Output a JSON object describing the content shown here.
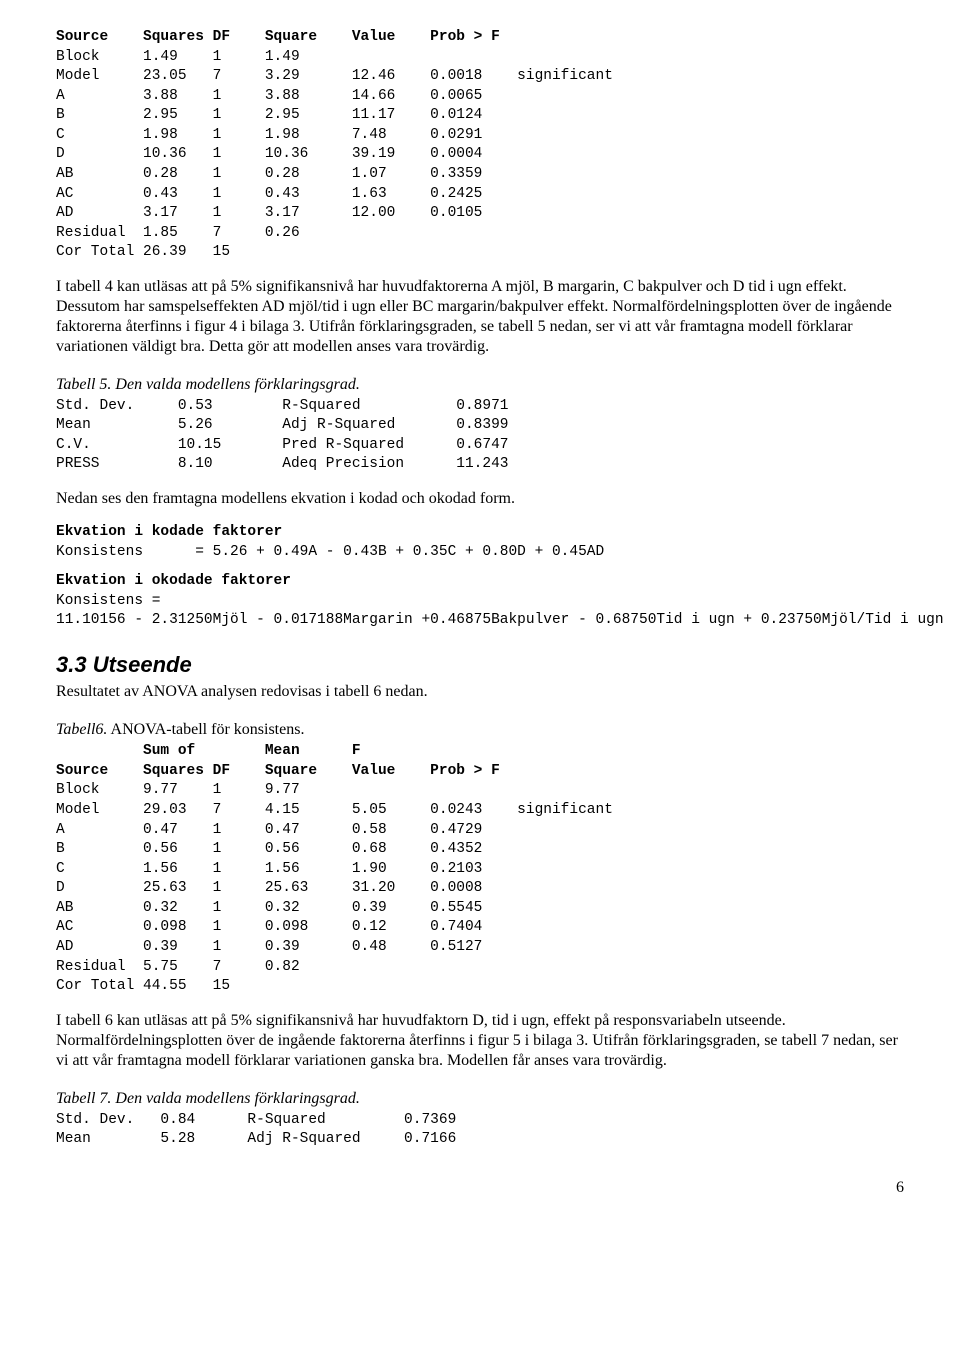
{
  "anova1": {
    "header": [
      "Source",
      "Squares",
      "DF",
      "Square",
      "Value",
      "Prob > F",
      ""
    ],
    "rows": [
      [
        "Block",
        "1.49",
        "1",
        "1.49",
        "",
        "",
        ""
      ],
      [
        "Model",
        "23.05",
        "7",
        "3.29",
        "12.46",
        "0.0018",
        "significant"
      ],
      [
        "A",
        "3.88",
        "1",
        "3.88",
        "14.66",
        "0.0065",
        ""
      ],
      [
        "B",
        "2.95",
        "1",
        "2.95",
        "11.17",
        "0.0124",
        ""
      ],
      [
        "C",
        "1.98",
        "1",
        "1.98",
        "7.48",
        "0.0291",
        ""
      ],
      [
        "D",
        "10.36",
        "1",
        "10.36",
        "39.19",
        "0.0004",
        ""
      ],
      [
        "AB",
        "0.28",
        "1",
        "0.28",
        "1.07",
        "0.3359",
        ""
      ],
      [
        "AC",
        "0.43",
        "1",
        "0.43",
        "1.63",
        "0.2425",
        ""
      ],
      [
        "AD",
        "3.17",
        "1",
        "3.17",
        "12.00",
        "0.0105",
        ""
      ],
      [
        "Residual",
        "1.85",
        "7",
        "0.26",
        "",
        "",
        ""
      ],
      [
        "Cor Total",
        "26.39",
        "15",
        "",
        "",
        "",
        ""
      ]
    ]
  },
  "para1": "I tabell 4 kan utläsas att på 5% signifikansnivå har huvudfaktorerna A mjöl, B margarin, C bakpulver och D tid i ugn effekt. Dessutom har samspelseffekten AD mjöl/tid i ugn eller BC margarin/bakpulver effekt. Normalfördelningsplotten över de ingående faktorerna återfinns i figur 4 i bilaga 3. Utifrån förklaringsgraden, se tabell 5 nedan, ser vi att vår framtagna modell förklarar variationen väldigt bra. Detta gör att modellen anses vara trovärdig.",
  "caption5": "Tabell 5. Den valda modellens förklaringsgrad.",
  "fit5": {
    "rows": [
      [
        "Std. Dev.",
        "0.53",
        "R-Squared",
        "0.8971"
      ],
      [
        "Mean",
        "5.26",
        "Adj R-Squared",
        "0.8399"
      ],
      [
        "C.V.",
        "10.15",
        "Pred R-Squared",
        "0.6747"
      ],
      [
        "PRESS",
        "8.10",
        "Adeq Precision",
        "11.243"
      ]
    ]
  },
  "para2": "Nedan ses den framtagna modellens ekvation i kodad och okodad form.",
  "eqCodedHeader": "Ekvation i kodade faktorer",
  "eqCodedLabel": "Konsistens",
  "eqCodedExpr": "= 5.26 + 0.49A - 0.43B + 0.35C + 0.80D + 0.45AD",
  "eqUncodedHeader": "Ekvation i okodade faktorer",
  "eqUncodedLabel": "Konsistens =",
  "eqUncodedExpr": "11.10156 - 2.31250Mjöl - 0.017188Margarin +0.46875Bakpulver - 0.68750Tid i ugn + 0.23750Mjöl/Tid i ugn",
  "section33": "3.3 Utseende",
  "section33intro": "Resultatet av ANOVA analysen redovisas i tabell 6 nedan.",
  "caption6a": "Tabell6.",
  "caption6b": " ANOVA-tabell för konsistens.",
  "anova6": {
    "header1": [
      "",
      "Sum of",
      "",
      "Mean",
      "F",
      "",
      ""
    ],
    "header2": [
      "Source",
      "Squares",
      "DF",
      "Square",
      "Value",
      "Prob > F",
      ""
    ],
    "rows": [
      [
        "Block",
        "9.77",
        "1",
        "9.77",
        "",
        "",
        ""
      ],
      [
        "Model",
        "29.03",
        "7",
        "4.15",
        "5.05",
        "0.0243",
        "significant"
      ],
      [
        "A",
        "0.47",
        "1",
        "0.47",
        "0.58",
        "0.4729",
        ""
      ],
      [
        "B",
        "0.56",
        "1",
        "0.56",
        "0.68",
        "0.4352",
        ""
      ],
      [
        "C",
        "1.56",
        "1",
        "1.56",
        "1.90",
        "0.2103",
        ""
      ],
      [
        "D",
        "25.63",
        "1",
        "25.63",
        "31.20",
        "0.0008",
        ""
      ],
      [
        "AB",
        "0.32",
        "1",
        "0.32",
        "0.39",
        "0.5545",
        ""
      ],
      [
        "AC",
        "0.098",
        "1",
        "0.098",
        "0.12",
        "0.7404",
        ""
      ],
      [
        "AD",
        "0.39",
        "1",
        "0.39",
        "0.48",
        "0.5127",
        ""
      ],
      [
        "Residual",
        "5.75",
        "7",
        "0.82",
        "",
        "",
        ""
      ],
      [
        "Cor Total",
        "44.55",
        "15",
        "",
        "",
        "",
        ""
      ]
    ]
  },
  "para3": "I tabell 6 kan utläsas att på 5% signifikansnivå har huvudfaktorn D, tid i ugn, effekt på responsvariabeln utseende. Normalfördelningsplotten över de ingående faktorerna återfinns i figur 5 i bilaga 3. Utifrån förklaringsgraden, se tabell 7 nedan, ser vi att vår framtagna modell förklarar variationen ganska bra. Modellen får anses vara trovärdig.",
  "caption7": "Tabell 7. Den valda modellens förklaringsgrad.",
  "fit7": {
    "rows": [
      [
        "Std. Dev.",
        "0.84",
        "R-Squared",
        "0.7369"
      ],
      [
        "Mean",
        "5.28",
        "Adj R-Squared",
        "0.7166"
      ]
    ]
  },
  "pageNumber": "6",
  "colw": {
    "c0": 10,
    "c1": 8,
    "c2": 6,
    "c3": 10,
    "c4": 9,
    "c5": 10,
    "c6": 0,
    "f0": 14,
    "f1": 12,
    "f2": 20,
    "f3": 0,
    "g0": 12,
    "g1": 10,
    "g2": 18,
    "g3": 0
  }
}
